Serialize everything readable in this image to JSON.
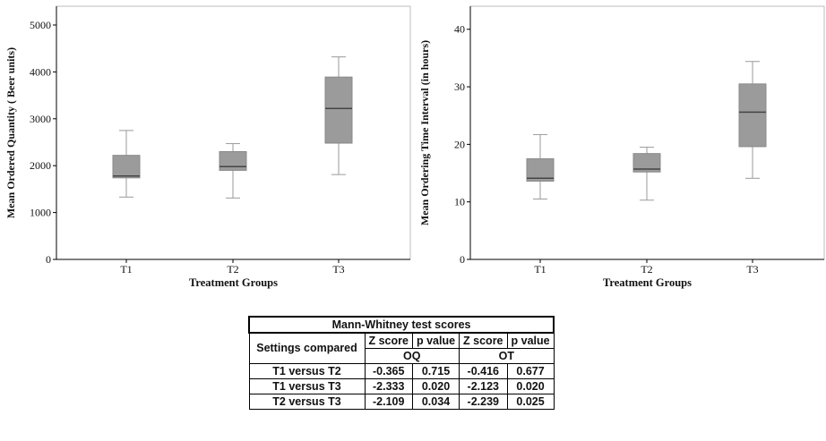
{
  "colors": {
    "box_fill": "#9b9b9b",
    "whisker": "#9a9a9a",
    "median": "#444444",
    "frame": "#bdbdbd",
    "axis": "#000000"
  },
  "chart_data": [
    {
      "type": "box",
      "title": "",
      "xlabel": "Treatment Groups",
      "ylabel": "Mean Ordered Quantity ( Beer units)",
      "ylim": [
        0,
        5400
      ],
      "yticks": [
        "0",
        "1000",
        "2000",
        "3000",
        "4000",
        "5000"
      ],
      "categories": [
        "T1",
        "T2",
        "T3"
      ],
      "boxes": [
        {
          "min": 1330,
          "q1": 1740,
          "median": 1780,
          "q3": 2220,
          "max": 2750
        },
        {
          "min": 1310,
          "q1": 1900,
          "median": 1980,
          "q3": 2300,
          "max": 2470
        },
        {
          "min": 1810,
          "q1": 2480,
          "median": 3220,
          "q3": 3890,
          "max": 4320
        }
      ],
      "grid": false
    },
    {
      "type": "box",
      "title": "",
      "xlabel": "Treatment Groups",
      "ylabel": "Mean Ordering Time Interval (in hours)",
      "ylim": [
        0,
        44
      ],
      "yticks": [
        "0",
        "10",
        "20",
        "30",
        "40"
      ],
      "categories": [
        "T1",
        "T2",
        "T3"
      ],
      "boxes": [
        {
          "min": 10.5,
          "q1": 13.6,
          "median": 14.1,
          "q3": 17.5,
          "max": 21.7
        },
        {
          "min": 10.3,
          "q1": 15.2,
          "median": 15.7,
          "q3": 18.4,
          "max": 19.5
        },
        {
          "min": 14.1,
          "q1": 19.6,
          "median": 25.6,
          "q3": 30.5,
          "max": 34.4
        }
      ],
      "grid": false
    }
  ],
  "table": {
    "title": "Mann-Whitney test scores",
    "settings_header": "Settings compared",
    "col_headers": [
      "Z score",
      "p value",
      "Z score",
      "p value"
    ],
    "groups": [
      "OQ",
      "OT"
    ],
    "rows": [
      {
        "label": "T1 versus T2",
        "values": [
          "-0.365",
          "0.715",
          "-0.416",
          "0.677"
        ]
      },
      {
        "label": "T1 versus T3",
        "values": [
          "-2.333",
          "0.020",
          "-2.123",
          "0.020"
        ]
      },
      {
        "label": "T2 versus T3",
        "values": [
          "-2.109",
          "0.034",
          "-2.239",
          "0.025"
        ]
      }
    ]
  }
}
